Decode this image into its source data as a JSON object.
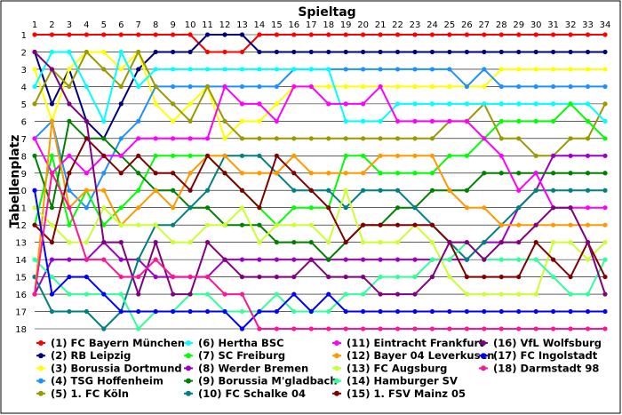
{
  "chart_data": {
    "type": "line",
    "title": "Spieltag",
    "ylabel": "Tabellenplatz",
    "xlabel": "",
    "x": [
      1,
      2,
      3,
      4,
      5,
      6,
      7,
      8,
      9,
      10,
      11,
      12,
      13,
      14,
      15,
      16,
      17,
      18,
      19,
      20,
      21,
      22,
      23,
      24,
      25,
      26,
      27,
      28,
      29,
      30,
      31,
      32,
      33,
      34
    ],
    "ylim": [
      1,
      18
    ],
    "y_inverted": true,
    "yticks": [
      1,
      2,
      3,
      4,
      5,
      6,
      7,
      8,
      9,
      10,
      11,
      12,
      13,
      14,
      15,
      16,
      17,
      18
    ],
    "grid": true,
    "legend_placement": "bottom",
    "series": [
      {
        "name": "(1) FC Bayern München",
        "color": "#ff0000",
        "values": [
          1,
          1,
          1,
          1,
          1,
          1,
          1,
          1,
          1,
          1,
          2,
          2,
          2,
          1,
          1,
          1,
          1,
          1,
          1,
          1,
          1,
          1,
          1,
          1,
          1,
          1,
          1,
          1,
          1,
          1,
          1,
          1,
          1,
          1
        ]
      },
      {
        "name": "(2) RB Leipzig",
        "color": "#000080",
        "values": [
          2,
          5,
          3,
          6,
          7,
          5,
          3,
          2,
          2,
          2,
          1,
          1,
          1,
          2,
          2,
          2,
          2,
          2,
          2,
          2,
          2,
          2,
          2,
          2,
          2,
          2,
          2,
          2,
          2,
          2,
          2,
          2,
          2,
          2
        ]
      },
      {
        "name": "(3) Borussia Dortmund",
        "color": "#ffff00",
        "values": [
          3,
          6,
          3,
          2,
          2,
          3,
          2,
          5,
          6,
          5,
          4,
          7,
          6,
          6,
          5,
          4,
          4,
          4,
          4,
          4,
          4,
          4,
          4,
          4,
          4,
          4,
          4,
          3,
          3,
          3,
          3,
          3,
          3,
          3
        ]
      },
      {
        "name": "(4) TSG Hoffenheim",
        "color": "#1e90ff",
        "values": [
          7,
          6,
          10,
          11,
          9,
          7,
          6,
          4,
          4,
          4,
          4,
          4,
          4,
          4,
          4,
          3,
          3,
          3,
          3,
          3,
          3,
          3,
          3,
          3,
          3,
          4,
          3,
          4,
          4,
          4,
          4,
          4,
          4,
          4
        ]
      },
      {
        "name": "(5) 1. FC Köln",
        "color": "#999900",
        "values": [
          5,
          3,
          4,
          2,
          3,
          4,
          2,
          4,
          5,
          6,
          4,
          6,
          7,
          7,
          7,
          7,
          7,
          7,
          7,
          7,
          7,
          7,
          7,
          7,
          6,
          6,
          5,
          7,
          7,
          8,
          8,
          7,
          7,
          5
        ]
      },
      {
        "name": "(6) Hertha BSC",
        "color": "#00ffff",
        "values": [
          4,
          2,
          2,
          4,
          6,
          2,
          4,
          3,
          3,
          3,
          3,
          3,
          3,
          3,
          3,
          3,
          3,
          3,
          6,
          6,
          6,
          5,
          5,
          5,
          5,
          5,
          5,
          5,
          5,
          5,
          5,
          5,
          5,
          6
        ]
      },
      {
        "name": "(7) SC Freiburg",
        "color": "#00ff00",
        "values": [
          12,
          8,
          12,
          10,
          12,
          11,
          10,
          8,
          8,
          8,
          8,
          9,
          10,
          11,
          12,
          11,
          11,
          11,
          8,
          8,
          9,
          9,
          9,
          9,
          8,
          8,
          7,
          6,
          6,
          6,
          6,
          5,
          6,
          7
        ]
      },
      {
        "name": "(8) Werder Bremen",
        "color": "#9900cc",
        "values": [
          16,
          14,
          14,
          14,
          13,
          14,
          14,
          15,
          15,
          15,
          15,
          14,
          14,
          14,
          14,
          14,
          14,
          14,
          14,
          14,
          14,
          14,
          14,
          14,
          14,
          14,
          13,
          13,
          11,
          10,
          8,
          8,
          8,
          8
        ]
      },
      {
        "name": "(9) Borussia M'gladbach",
        "color": "#008000",
        "values": [
          8,
          11,
          6,
          7,
          7,
          8,
          9,
          10,
          10,
          11,
          11,
          12,
          12,
          12,
          13,
          13,
          13,
          14,
          13,
          12,
          12,
          11,
          11,
          10,
          10,
          10,
          9,
          9,
          9,
          9,
          9,
          9,
          9,
          9
        ]
      },
      {
        "name": "(10) FC Schalke 04",
        "color": "#008080",
        "values": [
          15,
          17,
          17,
          17,
          18,
          17,
          14,
          12,
          12,
          11,
          10,
          8,
          8,
          8,
          9,
          10,
          10,
          10,
          11,
          10,
          10,
          10,
          11,
          12,
          13,
          14,
          13,
          12,
          11,
          10,
          10,
          10,
          10,
          10
        ]
      },
      {
        "name": "(11) Eintracht Frankfurt",
        "color": "#ff00ff",
        "values": [
          7,
          9,
          8,
          9,
          8,
          8,
          7,
          7,
          7,
          7,
          7,
          4,
          5,
          5,
          6,
          4,
          4,
          5,
          5,
          5,
          4,
          6,
          6,
          6,
          6,
          6,
          7,
          8,
          10,
          9,
          11,
          11,
          11,
          11
        ]
      },
      {
        "name": "(12) Bayer 04 Leverkusen",
        "color": "#ff9900",
        "values": [
          16,
          6,
          11,
          10,
          10,
          12,
          11,
          10,
          11,
          9,
          8,
          8,
          9,
          9,
          9,
          8,
          9,
          9,
          9,
          9,
          8,
          8,
          8,
          8,
          10,
          11,
          11,
          12,
          12,
          12,
          12,
          12,
          12,
          12
        ]
      },
      {
        "name": "(13) FC Augsburg",
        "color": "#ccff33",
        "values": [
          11,
          12,
          13,
          13,
          11,
          12,
          12,
          12,
          13,
          13,
          12,
          12,
          11,
          13,
          12,
          12,
          12,
          13,
          10,
          13,
          13,
          13,
          12,
          13,
          15,
          16,
          16,
          16,
          16,
          16,
          13,
          13,
          14,
          13
        ]
      },
      {
        "name": "(14) Hamburger SV",
        "color": "#33ff99",
        "values": [
          14,
          15,
          16,
          16,
          16,
          16,
          18,
          17,
          17,
          16,
          16,
          17,
          17,
          17,
          16,
          17,
          17,
          17,
          16,
          16,
          15,
          15,
          15,
          14,
          14,
          13,
          14,
          14,
          14,
          14,
          15,
          16,
          16,
          14
        ]
      },
      {
        "name": "(15) 1. FSV Mainz 05",
        "color": "#800000",
        "values": [
          12,
          13,
          9,
          7,
          8,
          9,
          8,
          9,
          9,
          10,
          8,
          9,
          10,
          11,
          8,
          9,
          10,
          11,
          13,
          12,
          12,
          12,
          12,
          12,
          13,
          15,
          15,
          15,
          15,
          13,
          14,
          15,
          13,
          15
        ]
      },
      {
        "name": "(16) VfL Wolfsburg",
        "color": "#800080",
        "values": [
          2,
          3,
          5,
          6,
          13,
          13,
          16,
          13,
          16,
          16,
          13,
          14,
          15,
          15,
          15,
          15,
          14,
          15,
          15,
          15,
          16,
          16,
          16,
          15,
          13,
          13,
          14,
          13,
          13,
          12,
          11,
          11,
          13,
          16
        ]
      },
      {
        "name": "(17) FC Ingolstadt",
        "color": "#0000ff",
        "values": [
          10,
          16,
          15,
          15,
          16,
          17,
          17,
          17,
          17,
          17,
          17,
          17,
          18,
          17,
          17,
          16,
          17,
          16,
          17,
          17,
          17,
          17,
          17,
          17,
          17,
          17,
          17,
          17,
          17,
          17,
          17,
          17,
          17,
          17
        ]
      },
      {
        "name": "(18) Darmstadt 98",
        "color": "#ff1493",
        "values": [
          16,
          9,
          11,
          14,
          14,
          15,
          15,
          14,
          15,
          15,
          15,
          16,
          16,
          18,
          18,
          18,
          18,
          18,
          18,
          18,
          18,
          18,
          18,
          18,
          18,
          18,
          18,
          18,
          18,
          18,
          18,
          18,
          18,
          18
        ]
      }
    ]
  }
}
